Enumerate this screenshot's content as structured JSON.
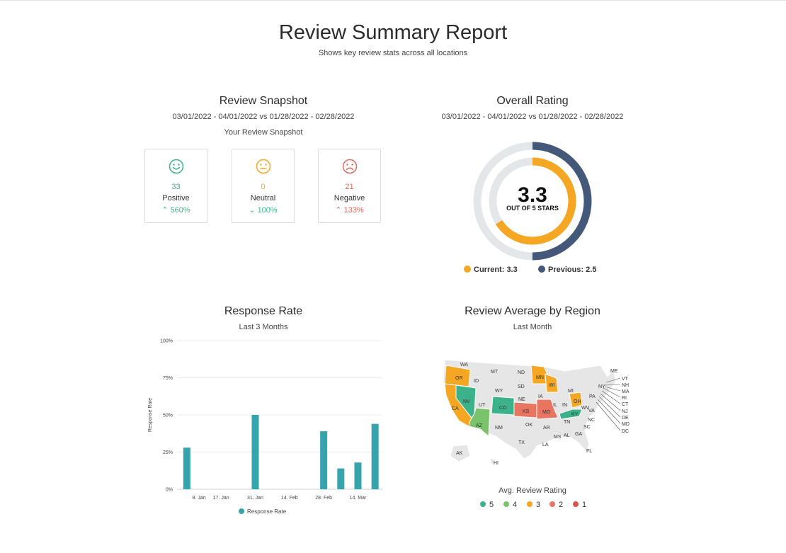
{
  "report": {
    "title": "Review Summary Report",
    "subtitle": "Shows key review stats across all locations"
  },
  "snapshot": {
    "title": "Review Snapshot",
    "date_range": "03/01/2022 - 04/01/2022 vs 01/28/2022 - 02/28/2022",
    "caption": "Your Review Snapshot",
    "cards": [
      {
        "count": "33",
        "label": "Positive",
        "change": "560%",
        "direction": "up",
        "icon": "smile-face-icon",
        "color": "#3cb28a"
      },
      {
        "count": "0",
        "label": "Neutral",
        "change": "100%",
        "direction": "down",
        "icon": "neutral-face-icon",
        "color": "#f5a623"
      },
      {
        "count": "21",
        "label": "Negative",
        "change": "133%",
        "direction": "up",
        "icon": "sad-face-icon",
        "color": "#e06b5b"
      }
    ]
  },
  "overall_rating": {
    "title": "Overall Rating",
    "date_range": "03/01/2022 - 04/01/2022 vs 01/28/2022 - 02/28/2022",
    "value": "3.3",
    "caption": "OUT OF 5 STARS",
    "current_label": "Current: 3.3",
    "previous_label": "Previous: 2.5",
    "current": 3.3,
    "previous": 2.5,
    "max": 5,
    "current_color": "#f5a623",
    "previous_color": "#44587a",
    "track_color": "#e4e7ea"
  },
  "response_rate": {
    "title": "Response Rate",
    "subtitle": "Last 3 Months"
  },
  "region": {
    "title": "Review Average by Region",
    "subtitle": "Last Month",
    "legend_title": "Avg. Review Rating",
    "legend": [
      {
        "label": "5",
        "color": "#3cb28a"
      },
      {
        "label": "4",
        "color": "#7ac36a"
      },
      {
        "label": "3",
        "color": "#f5a623"
      },
      {
        "label": "2",
        "color": "#e8755f"
      },
      {
        "label": "1",
        "color": "#d9534f"
      }
    ],
    "states": [
      "WA",
      "MT",
      "ND",
      "MN",
      "ME",
      "OR",
      "ID",
      "SD",
      "WI",
      "MI",
      "VT",
      "NH",
      "WY",
      "NY",
      "MA",
      "NV",
      "NE",
      "IA",
      "PA",
      "RI",
      "CA",
      "UT",
      "CO",
      "IL",
      "IN",
      "OH",
      "CT",
      "KS",
      "MO",
      "KY",
      "WV",
      "VA",
      "NJ",
      "DE",
      "MD",
      "DC",
      "AZ",
      "NM",
      "OK",
      "AR",
      "TN",
      "NC",
      "SC",
      "MS",
      "AL",
      "GA",
      "TX",
      "LA",
      "FL",
      "AK",
      "HI"
    ]
  },
  "chart_data": {
    "type": "bar",
    "title": "Response Rate",
    "subtitle": "Last 3 Months",
    "xlabel": "",
    "ylabel": "Response Rate",
    "ylim": [
      0,
      100
    ],
    "y_ticks": [
      "0%",
      "25%",
      "50%",
      "75%",
      "100%"
    ],
    "x_ticks": [
      "8. Jan",
      "17. Jan",
      "31. Jan",
      "14. Feb",
      "28. Feb",
      "14. Mar"
    ],
    "x_tick_dates": [
      "2022-01-08",
      "2022-01-17",
      "2022-01-31",
      "2022-02-14",
      "2022-02-28",
      "2022-03-14"
    ],
    "series": [
      {
        "name": "Response Rate",
        "color": "#35a4ac",
        "points": [
          {
            "x": "2022-01-03",
            "y": 28
          },
          {
            "x": "2022-01-31",
            "y": 50
          },
          {
            "x": "2022-02-28",
            "y": 39
          },
          {
            "x": "2022-03-07",
            "y": 14
          },
          {
            "x": "2022-03-14",
            "y": 18
          },
          {
            "x": "2022-03-21",
            "y": 44
          }
        ]
      }
    ],
    "grid": true,
    "legend": "bottom"
  }
}
